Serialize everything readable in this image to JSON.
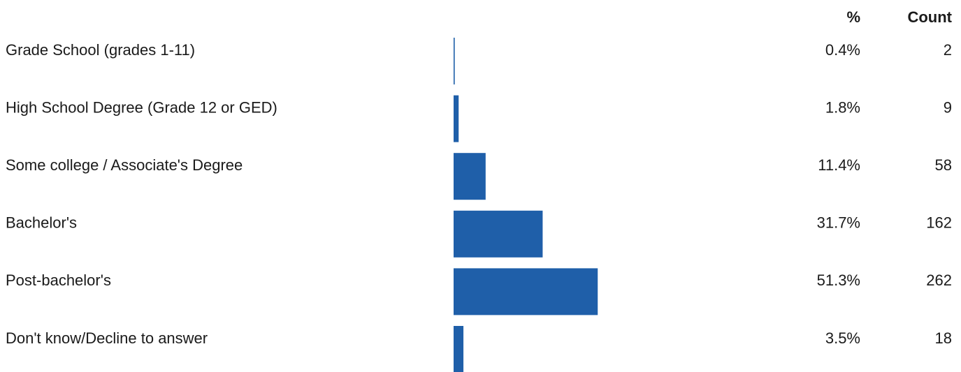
{
  "chart_data": {
    "type": "bar",
    "orientation": "horizontal",
    "color": "#1f5fa9",
    "percent_header": "%",
    "count_header": "Count",
    "categories": [
      "Grade School (grades 1-11)",
      "High School Degree (Grade 12 or GED)",
      "Some college / Associate's Degree",
      "Bachelor's",
      "Post-bachelor's",
      "Don't know/Decline to answer"
    ],
    "values": [
      0.4,
      1.8,
      11.4,
      31.7,
      51.3,
      3.5
    ],
    "value_labels": [
      "0.4%",
      "1.8%",
      "11.4%",
      "31.7%",
      "51.3%",
      "3.5%"
    ],
    "counts": [
      2,
      9,
      58,
      162,
      262,
      18
    ]
  }
}
